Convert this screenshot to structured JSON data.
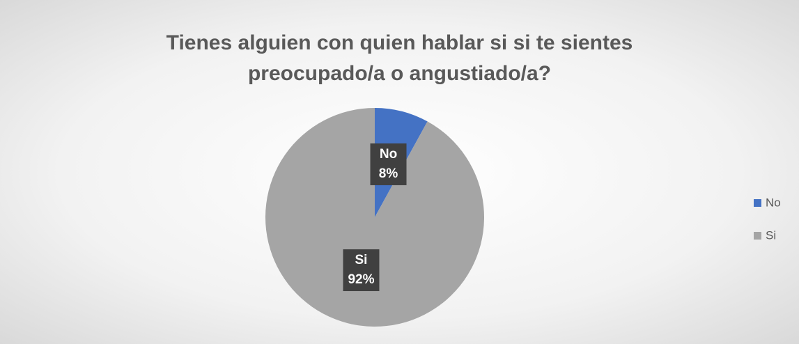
{
  "chart_data": {
    "type": "pie",
    "title": "Tienes alguien con quien hablar si si te sientes preocupado/a o angustiado/a?",
    "categories": [
      "No",
      "Si"
    ],
    "values": [
      8,
      92
    ],
    "value_labels": [
      "8%",
      "92%"
    ],
    "colors": [
      "#4472c4",
      "#a5a5a5"
    ],
    "legend": "right"
  }
}
